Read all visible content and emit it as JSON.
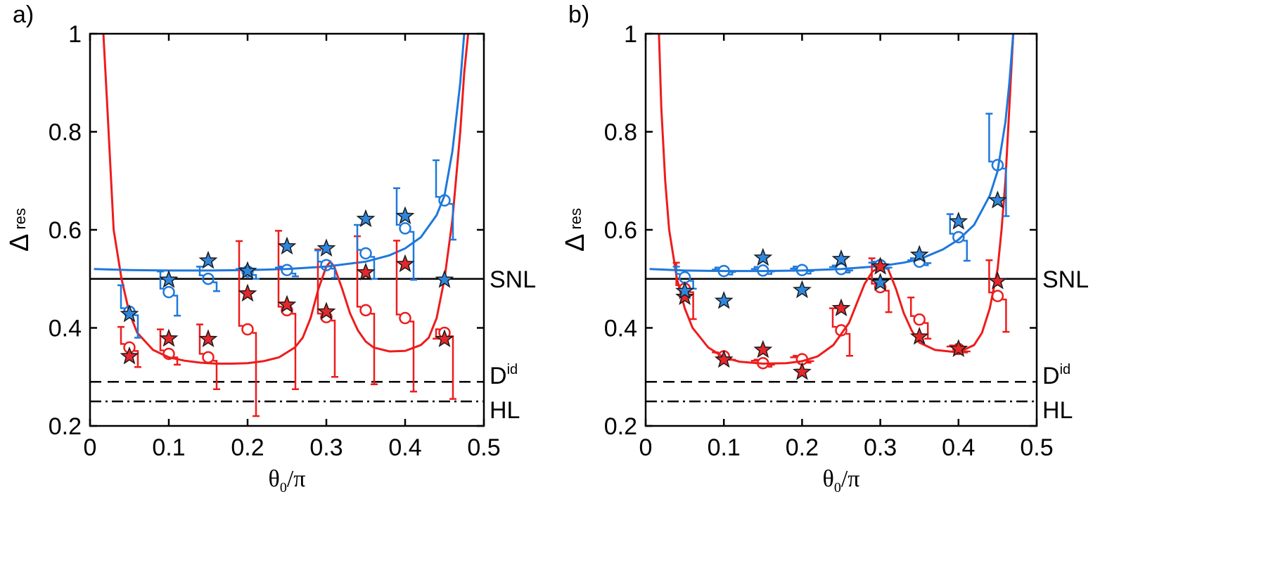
{
  "colors": {
    "red": "#ee1c1c",
    "blue": "#1e78dc",
    "star_red": "#e4272b",
    "star_blue": "#2f86dc",
    "axis": "#000000"
  },
  "chart_data": [
    {
      "type": "line",
      "panel_label": "a)",
      "xlabel_main": "θ",
      "xlabel_sub": "0",
      "xlabel_tail": "/π",
      "ylabel_main": "Δ",
      "ylabel_sub": "res",
      "xlim": [
        0,
        0.5
      ],
      "ylim": [
        0.2,
        1
      ],
      "xticks": [
        0,
        0.1,
        0.2,
        0.3,
        0.4,
        0.5
      ],
      "xtick_labels": [
        "0",
        "0.1",
        "0.2",
        "0.3",
        "0.4",
        "0.5"
      ],
      "yticks": [
        0.2,
        0.4,
        0.6,
        0.8,
        1
      ],
      "ytick_labels": [
        "0.2",
        "0.4",
        "0.6",
        "0.8",
        "1"
      ],
      "ref_lines": [
        {
          "name": "SNL",
          "label": "SNL",
          "sup": "",
          "y": 0.5,
          "style": "solid"
        },
        {
          "name": "Did",
          "label": "D",
          "sup": "id",
          "y": 0.29,
          "style": "dashed"
        },
        {
          "name": "HL",
          "label": "HL",
          "sup": "",
          "y": 0.25,
          "style": "dashdot"
        }
      ],
      "curves": [
        {
          "name": "red-theory",
          "color": "red",
          "x": [
            0.017,
            0.022,
            0.03,
            0.04,
            0.05,
            0.06,
            0.08,
            0.1,
            0.12,
            0.14,
            0.16,
            0.18,
            0.2,
            0.22,
            0.24,
            0.26,
            0.27,
            0.28,
            0.29,
            0.3,
            0.305,
            0.31,
            0.32,
            0.33,
            0.34,
            0.35,
            0.36,
            0.38,
            0.4,
            0.42,
            0.43,
            0.44,
            0.45,
            0.46,
            0.47,
            0.475,
            0.48
          ],
          "y": [
            1.0,
            0.85,
            0.6,
            0.5,
            0.43,
            0.39,
            0.355,
            0.34,
            0.333,
            0.329,
            0.327,
            0.327,
            0.328,
            0.332,
            0.34,
            0.36,
            0.38,
            0.42,
            0.48,
            0.525,
            0.535,
            0.525,
            0.48,
            0.43,
            0.395,
            0.372,
            0.36,
            0.352,
            0.353,
            0.365,
            0.38,
            0.42,
            0.5,
            0.62,
            0.8,
            0.92,
            1.0
          ]
        },
        {
          "name": "blue-theory",
          "color": "blue",
          "x": [
            0.005,
            0.05,
            0.1,
            0.15,
            0.2,
            0.25,
            0.3,
            0.35,
            0.38,
            0.4,
            0.42,
            0.44,
            0.45,
            0.46,
            0.47,
            0.475
          ],
          "y": [
            0.52,
            0.518,
            0.517,
            0.517,
            0.518,
            0.52,
            0.525,
            0.535,
            0.548,
            0.562,
            0.585,
            0.63,
            0.67,
            0.76,
            0.9,
            1.0
          ]
        }
      ],
      "measured": [
        {
          "name": "red-circles",
          "color": "red",
          "x": [
            0.05,
            0.1,
            0.15,
            0.2,
            0.25,
            0.3,
            0.35,
            0.4,
            0.45
          ],
          "y": [
            0.36,
            0.347,
            0.34,
            0.397,
            0.436,
            0.422,
            0.436,
            0.42,
            0.39
          ],
          "err_low": [
            0.32,
            0.325,
            0.275,
            0.22,
            0.275,
            0.3,
            0.285,
            0.27,
            0.255
          ],
          "err_high": [
            0.402,
            0.397,
            0.407,
            0.577,
            0.598,
            0.56,
            0.587,
            0.578,
            0.378
          ]
        },
        {
          "name": "blue-circles",
          "color": "blue",
          "x": [
            0.05,
            0.1,
            0.15,
            0.2,
            0.25,
            0.3,
            0.35,
            0.4,
            0.45
          ],
          "y": [
            0.433,
            0.473,
            0.5,
            0.515,
            0.518,
            0.528,
            0.552,
            0.603,
            0.66
          ],
          "err_low": [
            0.38,
            0.425,
            0.475,
            0.5,
            0.505,
            0.502,
            0.5,
            0.498,
            0.58
          ],
          "err_high": [
            0.487,
            0.515,
            0.525,
            0.52,
            0.523,
            0.558,
            0.61,
            0.685,
            0.742
          ]
        }
      ],
      "theory_stars": [
        {
          "name": "red-stars",
          "color": "star_red",
          "x": [
            0.05,
            0.1,
            0.15,
            0.2,
            0.25,
            0.3,
            0.35,
            0.4,
            0.45
          ],
          "y": [
            0.342,
            0.378,
            0.377,
            0.47,
            0.447,
            0.433,
            0.513,
            0.53,
            0.377
          ]
        },
        {
          "name": "blue-stars",
          "color": "star_blue",
          "x": [
            0.05,
            0.1,
            0.15,
            0.2,
            0.25,
            0.3,
            0.35,
            0.4,
            0.45
          ],
          "y": [
            0.428,
            0.498,
            0.537,
            0.516,
            0.566,
            0.562,
            0.622,
            0.628,
            0.498
          ]
        }
      ]
    },
    {
      "type": "line",
      "panel_label": "b)",
      "xlabel_main": "θ",
      "xlabel_sub": "0",
      "xlabel_tail": "/π",
      "ylabel_main": "Δ",
      "ylabel_sub": "res",
      "xlim": [
        0,
        0.5
      ],
      "ylim": [
        0.2,
        1
      ],
      "xticks": [
        0,
        0.1,
        0.2,
        0.3,
        0.4,
        0.5
      ],
      "xtick_labels": [
        "0",
        "0.1",
        "0.2",
        "0.3",
        "0.4",
        "0.5"
      ],
      "yticks": [
        0.2,
        0.4,
        0.6,
        0.8,
        1
      ],
      "ytick_labels": [
        "0.2",
        "0.4",
        "0.6",
        "0.8",
        "1"
      ],
      "ref_lines": [
        {
          "name": "SNL",
          "label": "SNL",
          "sup": "",
          "y": 0.5,
          "style": "solid"
        },
        {
          "name": "Did",
          "label": "D",
          "sup": "id",
          "y": 0.29,
          "style": "dashed"
        },
        {
          "name": "HL",
          "label": "HL",
          "sup": "",
          "y": 0.25,
          "style": "dashdot"
        }
      ],
      "curves": [
        {
          "name": "red-theory",
          "color": "red",
          "x": [
            0.017,
            0.02,
            0.025,
            0.03,
            0.04,
            0.05,
            0.06,
            0.08,
            0.1,
            0.12,
            0.15,
            0.18,
            0.2,
            0.22,
            0.24,
            0.26,
            0.27,
            0.28,
            0.29,
            0.3,
            0.31,
            0.32,
            0.33,
            0.34,
            0.35,
            0.37,
            0.4,
            0.42,
            0.43,
            0.44,
            0.45,
            0.455,
            0.46,
            0.465,
            0.47
          ],
          "y": [
            1.0,
            0.85,
            0.7,
            0.6,
            0.5,
            0.44,
            0.4,
            0.36,
            0.34,
            0.331,
            0.327,
            0.328,
            0.332,
            0.342,
            0.365,
            0.41,
            0.45,
            0.49,
            0.515,
            0.525,
            0.52,
            0.48,
            0.43,
            0.395,
            0.37,
            0.355,
            0.35,
            0.365,
            0.39,
            0.44,
            0.52,
            0.6,
            0.7,
            0.85,
            1.0
          ]
        },
        {
          "name": "blue-theory",
          "color": "blue",
          "x": [
            0.005,
            0.05,
            0.1,
            0.15,
            0.2,
            0.25,
            0.3,
            0.33,
            0.35,
            0.38,
            0.4,
            0.42,
            0.44,
            0.45,
            0.46,
            0.465,
            0.47
          ],
          "y": [
            0.52,
            0.517,
            0.516,
            0.516,
            0.517,
            0.52,
            0.526,
            0.533,
            0.54,
            0.56,
            0.58,
            0.61,
            0.67,
            0.72,
            0.82,
            0.9,
            1.0
          ]
        }
      ],
      "measured": [
        {
          "name": "red-circles",
          "color": "red",
          "x": [
            0.05,
            0.1,
            0.15,
            0.2,
            0.25,
            0.3,
            0.35,
            0.4,
            0.45
          ],
          "y": [
            0.48,
            0.342,
            0.328,
            0.336,
            0.395,
            0.483,
            0.417,
            0.357,
            0.465
          ],
          "err_low": [
            0.418,
            0.335,
            0.325,
            0.332,
            0.343,
            0.432,
            0.378,
            0.352,
            0.392
          ],
          "err_high": [
            0.533,
            0.35,
            0.333,
            0.34,
            0.44,
            0.542,
            0.462,
            0.362,
            0.538
          ]
        },
        {
          "name": "blue-circles",
          "color": "blue",
          "x": [
            0.05,
            0.1,
            0.15,
            0.2,
            0.25,
            0.3,
            0.35,
            0.4,
            0.45
          ],
          "y": [
            0.503,
            0.516,
            0.517,
            0.518,
            0.52,
            0.528,
            0.535,
            0.585,
            0.732
          ],
          "err_low": [
            0.48,
            0.514,
            0.515,
            0.516,
            0.517,
            0.523,
            0.532,
            0.537,
            0.628
          ],
          "err_high": [
            0.525,
            0.519,
            0.52,
            0.521,
            0.524,
            0.533,
            0.538,
            0.632,
            0.837
          ]
        }
      ],
      "theory_stars": [
        {
          "name": "red-stars",
          "color": "star_red",
          "x": [
            0.05,
            0.1,
            0.15,
            0.2,
            0.25,
            0.3,
            0.35,
            0.4,
            0.45
          ],
          "y": [
            0.463,
            0.335,
            0.355,
            0.31,
            0.44,
            0.525,
            0.382,
            0.357,
            0.495
          ]
        },
        {
          "name": "blue-stars",
          "color": "star_blue",
          "x": [
            0.05,
            0.1,
            0.15,
            0.2,
            0.25,
            0.3,
            0.35,
            0.4,
            0.45
          ],
          "y": [
            0.475,
            0.455,
            0.543,
            0.477,
            0.54,
            0.492,
            0.549,
            0.617,
            0.66
          ]
        }
      ]
    }
  ]
}
